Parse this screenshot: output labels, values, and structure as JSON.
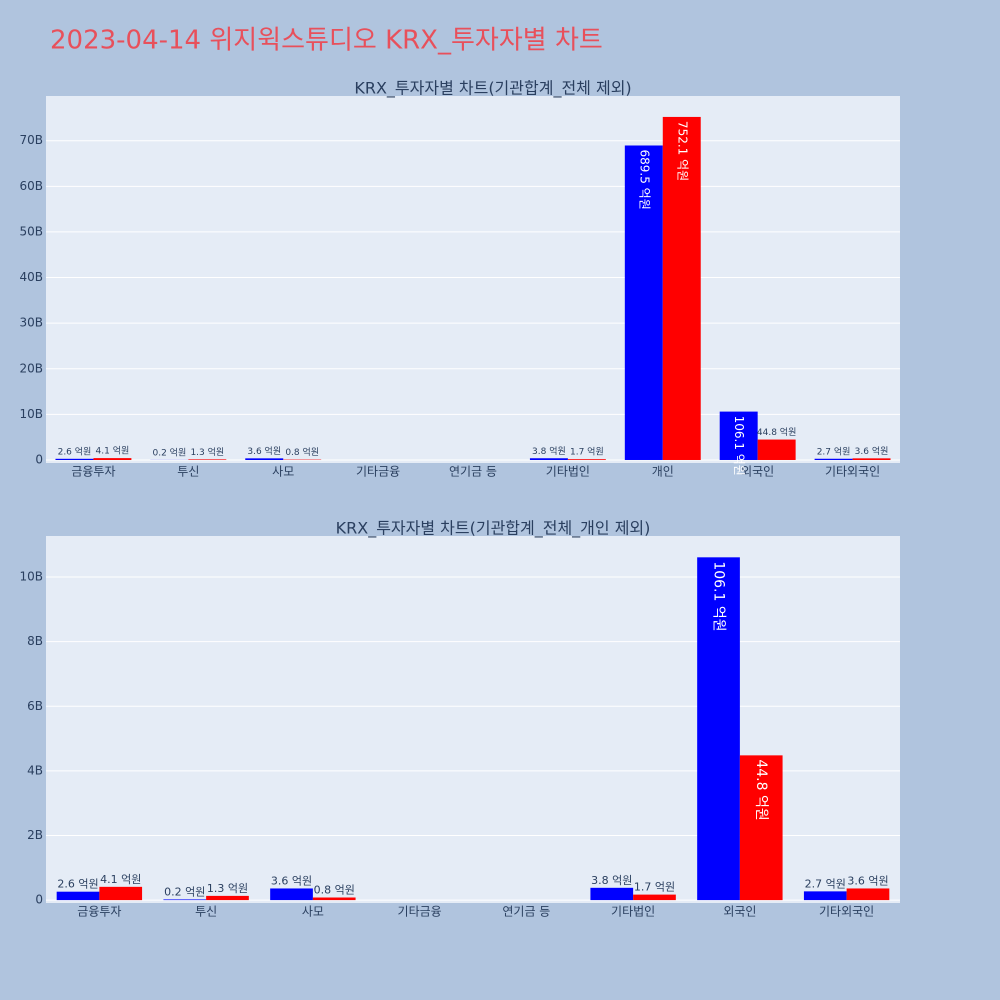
{
  "title": "2023-04-14 위지윅스튜디오 KRX_투자자별 차트",
  "chart_data": [
    {
      "type": "bar",
      "title": "KRX_투자자별 차트(기관합계_전체 제외)",
      "categories": [
        "금융투자",
        "투신",
        "사모",
        "기타금융",
        "연기금 등",
        "기타법인",
        "개인",
        "외국인",
        "기타외국인"
      ],
      "series": [
        {
          "color": "#0000ff",
          "values": [
            260000000,
            20000000,
            360000000,
            null,
            null,
            380000000,
            68950000000,
            10610000000,
            270000000
          ],
          "value_labels": [
            "2.6 억원",
            "0.2 억원",
            "3.6 억원",
            null,
            null,
            "3.8 억원",
            "689.5 억원",
            "106.1 억원",
            "2.7 억원"
          ]
        },
        {
          "color": "#ff0000",
          "values": [
            410000000,
            130000000,
            80000000,
            null,
            null,
            170000000,
            75210000000,
            4480000000,
            360000000
          ],
          "value_labels": [
            "4.1 억원",
            "1.3 억원",
            "0.8 억원",
            null,
            null,
            "1.7 억원",
            "752.1 억원",
            "44.8 억원",
            "3.6 억원"
          ]
        }
      ],
      "ylim": [
        -660000000,
        79800000000
      ],
      "yticks": [
        0,
        {
          "value": 10000000000,
          "label": "10B"
        },
        {
          "value": 20000000000,
          "label": "20B"
        },
        {
          "value": 30000000000,
          "label": "30B"
        },
        {
          "value": 40000000000,
          "label": "40B"
        },
        {
          "value": 50000000000,
          "label": "50B"
        },
        {
          "value": 60000000000,
          "label": "60B"
        },
        {
          "value": 70000000000,
          "label": "70B"
        }
      ],
      "grid": true
    },
    {
      "type": "bar",
      "title": "KRX_투자자별 차트(기관합계_전체_개인 제외)",
      "categories": [
        "금융투자",
        "투신",
        "사모",
        "기타금융",
        "연기금 등",
        "기타법인",
        "외국인",
        "기타외국인"
      ],
      "series": [
        {
          "color": "#0000ff",
          "values": [
            260000000,
            20000000,
            360000000,
            null,
            null,
            380000000,
            10610000000,
            270000000
          ],
          "value_labels": [
            "2.6 억원",
            "0.2 억원",
            "3.6 억원",
            null,
            null,
            "3.8 억원",
            "106.1 억원",
            "2.7 억원"
          ]
        },
        {
          "color": "#ff0000",
          "values": [
            410000000,
            130000000,
            80000000,
            null,
            null,
            170000000,
            4480000000,
            360000000
          ],
          "value_labels": [
            "4.1 억원",
            "1.3 억원",
            "0.8 억원",
            null,
            null,
            "1.7 억원",
            "44.8 억원",
            "3.6 억원"
          ]
        }
      ],
      "ylim": [
        -90000000,
        11270000000
      ],
      "yticks": [
        0,
        {
          "value": 2000000000,
          "label": "2B"
        },
        {
          "value": 4000000000,
          "label": "4B"
        },
        {
          "value": 6000000000,
          "label": "6B"
        },
        {
          "value": 8000000000,
          "label": "8B"
        },
        {
          "value": 10000000000,
          "label": "10B"
        }
      ],
      "grid": true
    }
  ]
}
